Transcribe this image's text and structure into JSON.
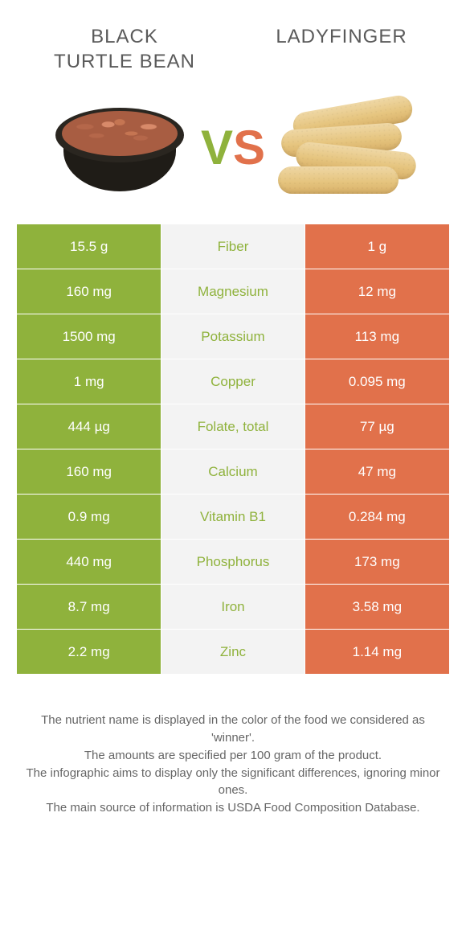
{
  "colors": {
    "left": "#8fb23c",
    "right": "#e1714b",
    "mid_bg": "#f3f3f3",
    "page_bg": "#ffffff",
    "text": "#555555"
  },
  "header": {
    "left_title_line1": "Black",
    "left_title_line2": "turtle bean",
    "right_title": "Ladyfinger"
  },
  "vs": {
    "v": "V",
    "s": "S"
  },
  "rows": [
    {
      "left": "15.5 g",
      "label": "Fiber",
      "right": "1 g",
      "winner": "left"
    },
    {
      "left": "160 mg",
      "label": "Magnesium",
      "right": "12 mg",
      "winner": "left"
    },
    {
      "left": "1500 mg",
      "label": "Potassium",
      "right": "113 mg",
      "winner": "left"
    },
    {
      "left": "1 mg",
      "label": "Copper",
      "right": "0.095 mg",
      "winner": "left"
    },
    {
      "left": "444 µg",
      "label": "Folate, total",
      "right": "77 µg",
      "winner": "left"
    },
    {
      "left": "160 mg",
      "label": "Calcium",
      "right": "47 mg",
      "winner": "left"
    },
    {
      "left": "0.9 mg",
      "label": "Vitamin B1",
      "right": "0.284 mg",
      "winner": "left"
    },
    {
      "left": "440 mg",
      "label": "Phosphorus",
      "right": "173 mg",
      "winner": "left"
    },
    {
      "left": "8.7 mg",
      "label": "Iron",
      "right": "3.58 mg",
      "winner": "left"
    },
    {
      "left": "2.2 mg",
      "label": "Zinc",
      "right": "1.14 mg",
      "winner": "left"
    }
  ],
  "footer": {
    "l1": "The nutrient name is displayed in the color of the food we considered as 'winner'.",
    "l2": "The amounts are specified per 100 gram of the product.",
    "l3": "The infographic aims to display only the significant differences, ignoring minor ones.",
    "l4": "The main source of information is USDA Food Composition Database."
  }
}
